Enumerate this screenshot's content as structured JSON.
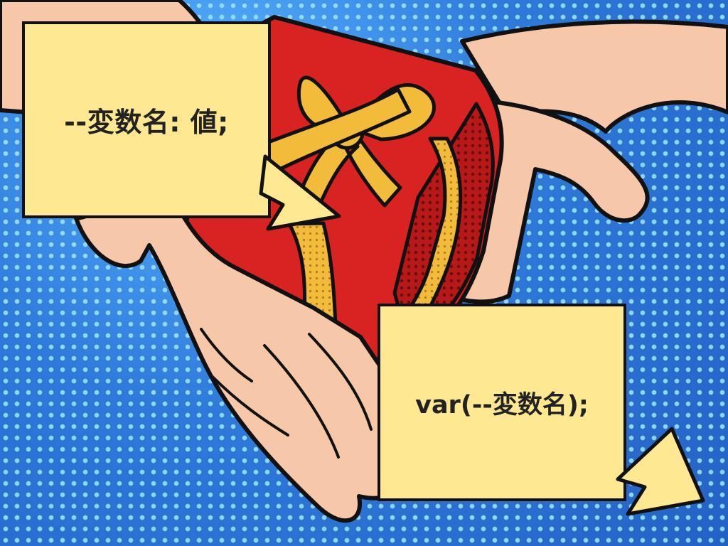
{
  "callouts": {
    "declaration": "--変数名: 値;",
    "usage": "var(--変数名);"
  },
  "colors": {
    "background_blue": "#2f7ad8",
    "halftone_dot": "#8fe0ff",
    "callout_fill": "#fee891",
    "gift_red": "#d92222",
    "gift_dark_red": "#8f1414",
    "ribbon_gold": "#f2bc3a",
    "skin": "#f7c7aa",
    "outline": "#111111"
  },
  "icons": {
    "gift_illustration": "gift-box-in-hands",
    "arrow_shape": "right-down-arrow"
  }
}
